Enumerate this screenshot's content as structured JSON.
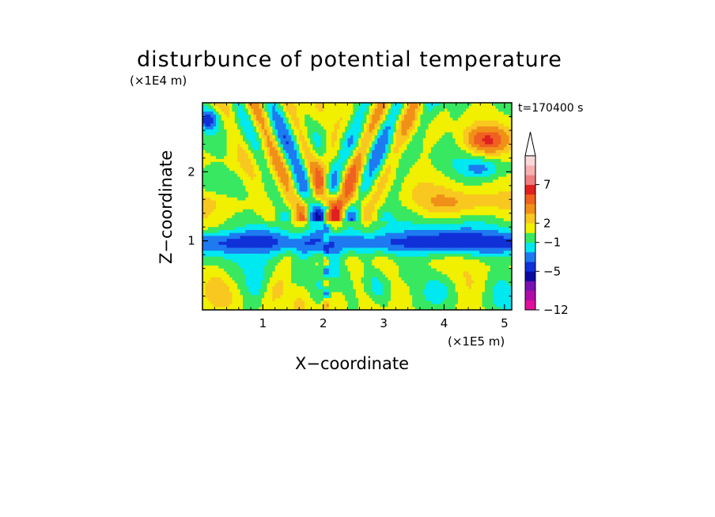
{
  "chart_data": {
    "type": "heatmap",
    "title": "disturbunce of potential temperature",
    "xlabel": "X−coordinate",
    "ylabel": "Z−coordinate",
    "x_unit": "(×1E5 m)",
    "y_unit": "(×1E4 m)",
    "time_label": "t=170400 s",
    "xlim": [
      0,
      5.12
    ],
    "ylim": [
      0,
      3.0
    ],
    "xticks": [
      "1",
      "2",
      "3",
      "4",
      "5"
    ],
    "yticks": [
      "1",
      "2"
    ],
    "colorbar": {
      "tick_labels": [
        "7",
        "2",
        "−1",
        "−5",
        "−12"
      ],
      "extend": "max",
      "colors": [
        "#e0109c",
        "#b00ca8",
        "#7a10b0",
        "#0a0aa0",
        "#1030d8",
        "#1e7af0",
        "#00e8f0",
        "#38e860",
        "#f0f000",
        "#f8c820",
        "#f09018",
        "#f06020",
        "#e02020",
        "#f08080",
        "#f8b0b0",
        "#f8d8d8"
      ]
    }
  }
}
